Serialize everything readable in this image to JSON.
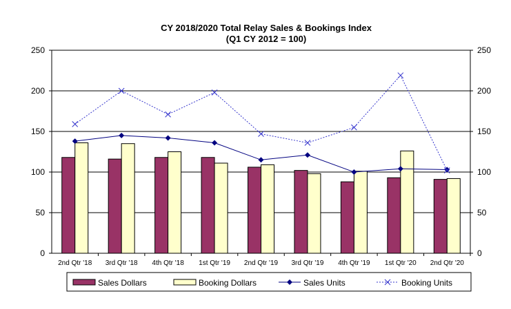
{
  "chart_data": {
    "type": "bar+line",
    "title": "CY 2018/2020 Total Relay Sales & Bookings Index",
    "subtitle": "(Q1 CY 2012 = 100)",
    "categories": [
      "2nd Qtr  '18",
      "3rd Qtr '18",
      "4th Qtr '18",
      "1st Qtr '19",
      "2nd Qtr  '19",
      "3rd Qtr '19",
      "4th Qtr '19",
      "1st Qtr '20",
      "2nd Qtr  '20"
    ],
    "ylim": [
      0,
      250
    ],
    "y2lim": [
      0,
      250
    ],
    "yticks": [
      "0",
      "50",
      "100",
      "150",
      "200",
      "250"
    ],
    "grid": true,
    "legend": "bottom",
    "series": [
      {
        "name": "Sales Dollars",
        "kind": "bar",
        "color": "#993366",
        "values": [
          118,
          116,
          118,
          118,
          106,
          102,
          88,
          93,
          91
        ]
      },
      {
        "name": "Booking Dollars",
        "kind": "bar",
        "color": "#FFFFCC",
        "values": [
          136,
          135,
          125,
          111,
          109,
          98,
          101,
          126,
          92
        ]
      },
      {
        "name": "Sales Units",
        "kind": "line",
        "marker": "diamond",
        "color": "#000080",
        "values": [
          138,
          145,
          142,
          136,
          115,
          121,
          100,
          104,
          103
        ]
      },
      {
        "name": "Booking Units",
        "kind": "line",
        "marker": "x",
        "dash": true,
        "color": "#3333CC",
        "values": [
          159,
          200,
          171,
          198,
          147,
          136,
          155,
          219,
          102
        ]
      }
    ]
  }
}
